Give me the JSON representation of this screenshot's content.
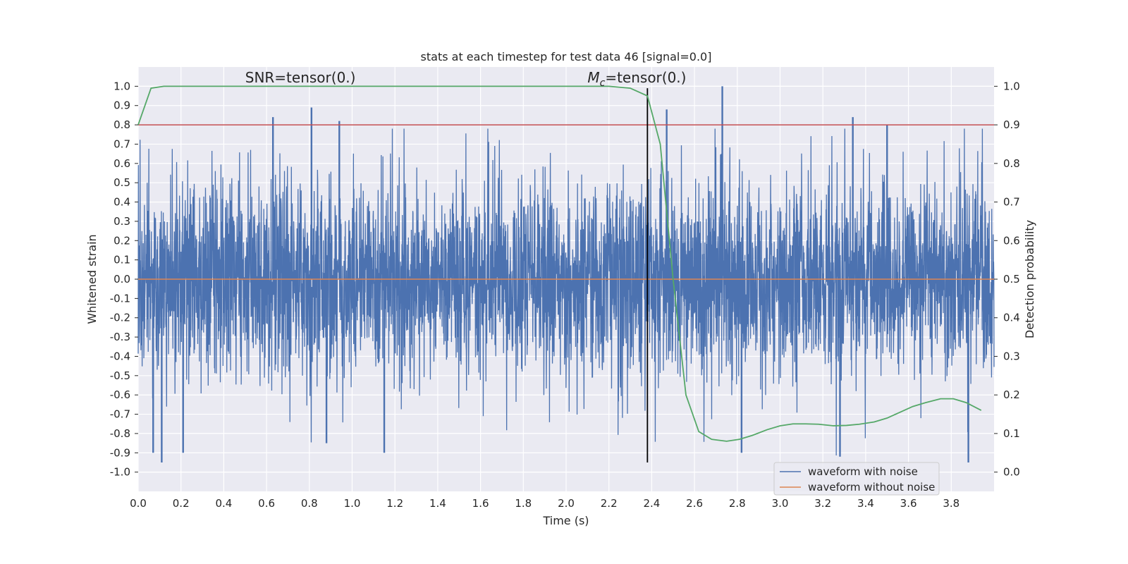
{
  "chart_data": {
    "type": "line",
    "title": "stats at each timestep for test data 46 [signal=0.0]",
    "xlabel": "Time (s)",
    "ylabel": "Whitened strain",
    "ylabel_right": "Detection probability",
    "xlim": [
      0.0,
      4.0
    ],
    "ylim": [
      -1.1,
      1.1
    ],
    "ylim_right": [
      -0.05,
      1.05
    ],
    "x_ticks": [
      0.0,
      0.2,
      0.4,
      0.6,
      0.8,
      1.0,
      1.2,
      1.4,
      1.6,
      1.8,
      2.0,
      2.2,
      2.4,
      2.6,
      2.8,
      3.0,
      3.2,
      3.4,
      3.6,
      3.8
    ],
    "x_tick_labels": [
      "0.0",
      "0.2",
      "0.4",
      "0.6",
      "0.8",
      "1.0",
      "1.2",
      "1.4",
      "1.6",
      "1.8",
      "2.0",
      "2.2",
      "2.4",
      "2.6",
      "2.8",
      "3.0",
      "3.2",
      "3.4",
      "3.6",
      "3.8"
    ],
    "y_ticks": [
      1.0,
      0.9,
      0.8,
      0.7,
      0.6,
      0.5,
      0.4,
      0.3,
      0.2,
      0.1,
      0.0,
      -0.1,
      -0.2,
      -0.3,
      -0.4,
      -0.5,
      -0.6,
      -0.7,
      -0.8,
      -0.9,
      -1.0
    ],
    "y_tick_labels": [
      "1.0",
      "0.9",
      "0.8",
      "0.7",
      "0.6",
      "0.5",
      "0.4",
      "0.3",
      "0.2",
      "0.1",
      "0.0",
      "-0.1",
      "-0.2",
      "-0.3",
      "-0.4",
      "-0.5",
      "-0.6",
      "-0.7",
      "-0.8",
      "-0.9",
      "-1.0"
    ],
    "y_right_ticks": [
      1.0,
      0.9,
      0.8,
      0.7,
      0.6,
      0.5,
      0.4,
      0.3,
      0.2,
      0.1,
      0.0
    ],
    "y_right_tick_labels": [
      "1.0",
      "0.9",
      "0.8",
      "0.7",
      "0.6",
      "0.5",
      "0.4",
      "0.3",
      "0.2",
      "0.1",
      "0.0"
    ],
    "grid": true,
    "legend_position": "lower-right",
    "annotations": [
      {
        "text": "SNR=tensor(0.)",
        "x": 0.5,
        "y": 1.02
      },
      {
        "text": "M_c=tensor(0.)",
        "x": 2.1,
        "y": 1.02,
        "math_base": "M",
        "math_sub": "c",
        "rest": "=tensor(0.)"
      }
    ],
    "series": [
      {
        "name": "waveform with noise",
        "color": "#4c72b0",
        "kind": "noise",
        "x_range": [
          0.0,
          4.0
        ],
        "approx_std": 0.25,
        "approx_min": -0.95,
        "approx_max": 1.0,
        "spike_peaks": [
          {
            "x": 0.63,
            "y": 0.84
          },
          {
            "x": 0.81,
            "y": 0.89
          },
          {
            "x": 0.94,
            "y": 0.82
          },
          {
            "x": 2.47,
            "y": 0.88
          },
          {
            "x": 2.73,
            "y": 1.0
          },
          {
            "x": 3.34,
            "y": 0.84
          },
          {
            "x": 3.5,
            "y": 0.8
          },
          {
            "x": 0.11,
            "y": -0.95
          },
          {
            "x": 0.07,
            "y": -0.9
          },
          {
            "x": 0.21,
            "y": -0.9
          },
          {
            "x": 3.88,
            "y": -0.95
          },
          {
            "x": 3.28,
            "y": -0.92
          },
          {
            "x": 2.82,
            "y": -0.9
          },
          {
            "x": 1.15,
            "y": -0.9
          },
          {
            "x": 0.88,
            "y": -0.85
          }
        ]
      },
      {
        "name": "waveform without noise",
        "color": "#dd8452",
        "x": [
          0.0,
          4.0
        ],
        "y": [
          0.0,
          0.0
        ]
      },
      {
        "color": "#55a868",
        "axis": "right",
        "x": [
          0.0,
          0.06,
          0.12,
          0.18,
          0.5,
          1.0,
          1.5,
          2.0,
          2.2,
          2.3,
          2.38,
          2.44,
          2.5,
          2.56,
          2.62,
          2.68,
          2.75,
          2.81,
          2.87,
          2.94,
          3.0,
          3.06,
          3.12,
          3.18,
          3.25,
          3.31,
          3.37,
          3.44,
          3.5,
          3.56,
          3.62,
          3.68,
          3.75,
          3.81,
          3.87,
          3.94
        ],
        "y": [
          0.9,
          0.995,
          1.0,
          1.0,
          1.0,
          1.0,
          1.0,
          1.0,
          1.0,
          0.995,
          0.975,
          0.85,
          0.5,
          0.2,
          0.105,
          0.085,
          0.08,
          0.085,
          0.095,
          0.11,
          0.12,
          0.125,
          0.125,
          0.124,
          0.12,
          0.121,
          0.124,
          0.13,
          0.14,
          0.155,
          0.17,
          0.18,
          0.19,
          0.19,
          0.18,
          0.16
        ]
      },
      {
        "color": "#c44e52",
        "kind": "hline",
        "y": 0.8
      },
      {
        "color": "#000000",
        "kind": "vline",
        "x": 2.38,
        "y_range": [
          -0.95,
          0.99
        ]
      }
    ]
  }
}
